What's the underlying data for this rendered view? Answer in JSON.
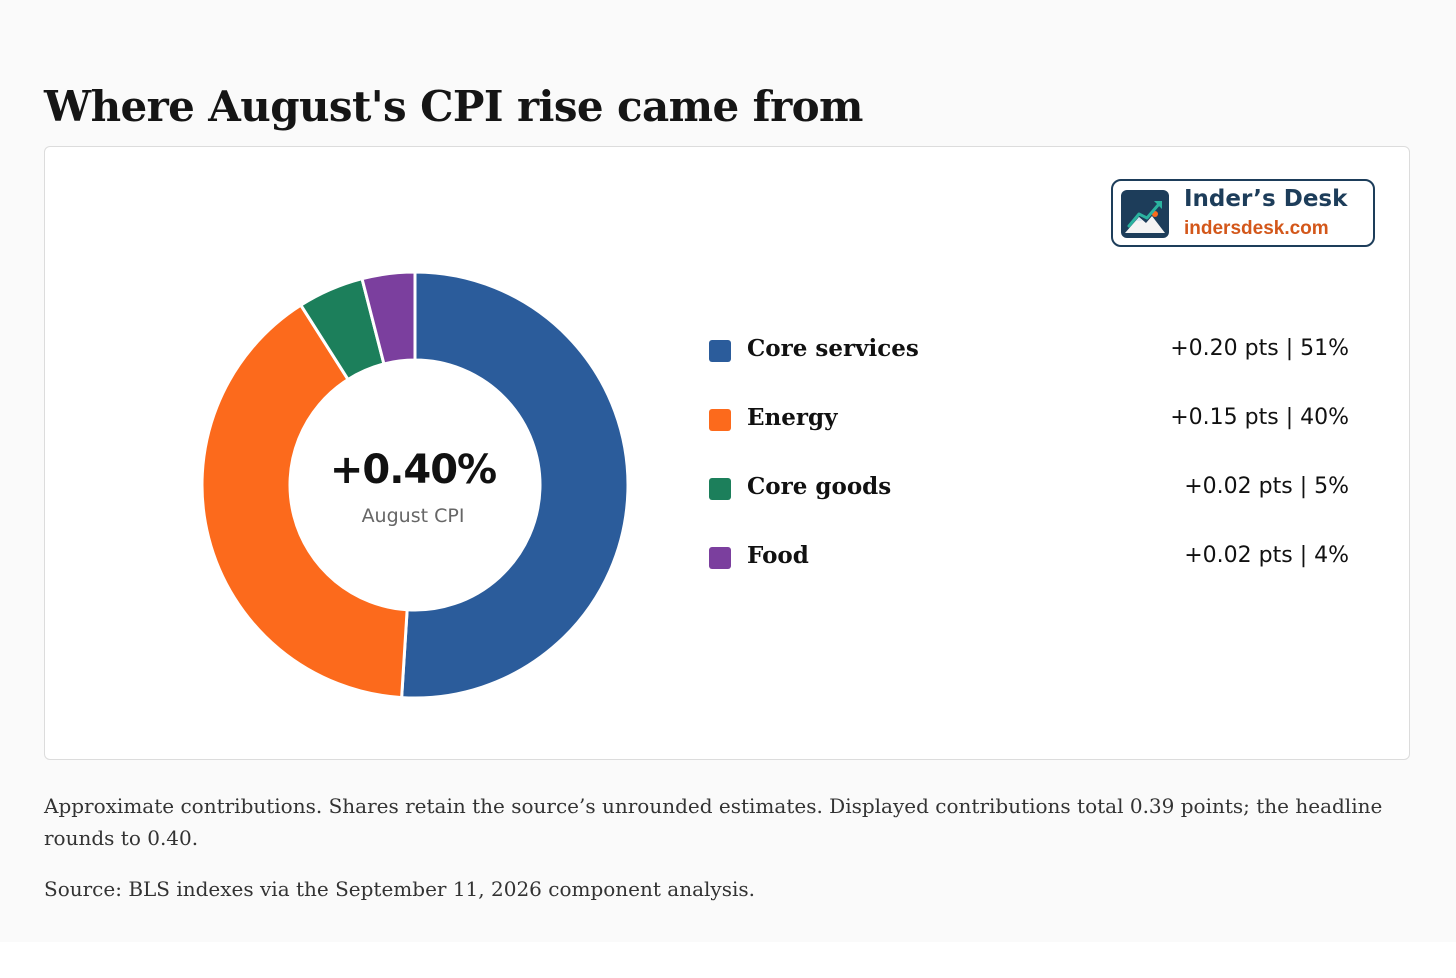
{
  "title": "Where August's CPI rise came from",
  "brand": {
    "name": "Inder’s Desk",
    "url": "indersdesk.com",
    "logo_icon": "mountain-growth-chart-icon"
  },
  "center": {
    "value": "+0.40%",
    "label": "August CPI"
  },
  "chart_data": {
    "type": "pie",
    "style": "donut",
    "title": "Where August's CPI rise came from",
    "total_label": "+0.40%",
    "categories": [
      "Core services",
      "Energy",
      "Core goods",
      "Food"
    ],
    "values": [
      0.2,
      0.15,
      0.02,
      0.02
    ],
    "shares": [
      51,
      40,
      5,
      4
    ],
    "colors": [
      "#2b5c9b",
      "#fc6a1c",
      "#1c7f5b",
      "#7b3f9e"
    ],
    "value_labels": [
      "+0.20 pts | 51%",
      "+0.15 pts | 40%",
      "+0.02 pts | 5%",
      "+0.02 pts | 4%"
    ],
    "legend_position": "right"
  },
  "note": "Approximate contributions. Shares retain the source’s unrounded estimates. Displayed contributions total 0.39 points; the headline rounds to 0.40.",
  "source": "Source: BLS indexes via the September 11, 2026 component analysis."
}
